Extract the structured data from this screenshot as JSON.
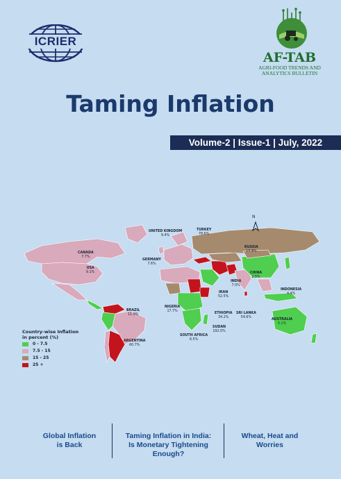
{
  "header": {
    "icrier_logo_text": "ICRIER",
    "aftab_title": "AF-TAB",
    "aftab_subtitle_line1": "AGRI-FOOD TRENDS AND",
    "aftab_subtitle_line2": "ANALYTICS BULLETIN"
  },
  "title": "Taming Inflation",
  "volume_line": "Volume-2 | Issue-1 | July, 2022",
  "map": {
    "labels": [
      {
        "name": "UNITED KINGDOM",
        "value": "9.4%"
      },
      {
        "name": "TURKEY",
        "value": "78.6%"
      },
      {
        "name": "CANADA",
        "value": "7.7%"
      },
      {
        "name": "RUSSIA",
        "value": "15.9%"
      },
      {
        "name": "GERMANY",
        "value": "7.6%"
      },
      {
        "name": "USA",
        "value": "9.1%"
      },
      {
        "name": "CHINA",
        "value": "2.5%"
      },
      {
        "name": "INDIA",
        "value": "7.0%"
      },
      {
        "name": "IRAN",
        "value": "52.5%"
      },
      {
        "name": "INDONESIA",
        "value": "4.4%"
      },
      {
        "name": "NIGERIA",
        "value": "17.7%"
      },
      {
        "name": "ETHIOPIA",
        "value": "34.2%"
      },
      {
        "name": "SRI LANKA",
        "value": "54.6%"
      },
      {
        "name": "SUDAN",
        "value": "192.0%"
      },
      {
        "name": "AUSTRALIA",
        "value": "5.1%"
      },
      {
        "name": "BRAZIL",
        "value": "11.9%"
      },
      {
        "name": "SOUTH AFRICA",
        "value": "6.5%"
      },
      {
        "name": "ARGENTINA",
        "value": "60.7%"
      }
    ],
    "north_label": "N"
  },
  "legend": {
    "title_line1": "Country-wise Inflation",
    "title_line2": "in percent (%)",
    "items": [
      {
        "label": "0 - 7.5",
        "color": "#4fce4f"
      },
      {
        "label": "7.5 - 15",
        "color": "#d9a9bc"
      },
      {
        "label": "15 - 25",
        "color": "#a68a6d"
      },
      {
        "label": "25 +",
        "color": "#c3141e"
      }
    ]
  },
  "footer": {
    "item1_line1": "Global Inflation",
    "item1_line2": "is Back",
    "item2_line1": "Taming Inflation in India:",
    "item2_line2": "Is Monetary Tightening",
    "item2_line3": "Enough?",
    "item3_line1": "Wheat, Heat and",
    "item3_line2": "Worries"
  },
  "colors": {
    "background": "#c5dcf1",
    "title": "#1b3a6b",
    "band": "#1b2d55",
    "footer_text": "#1b4a8a",
    "aftab_green": "#1f6e2c"
  }
}
